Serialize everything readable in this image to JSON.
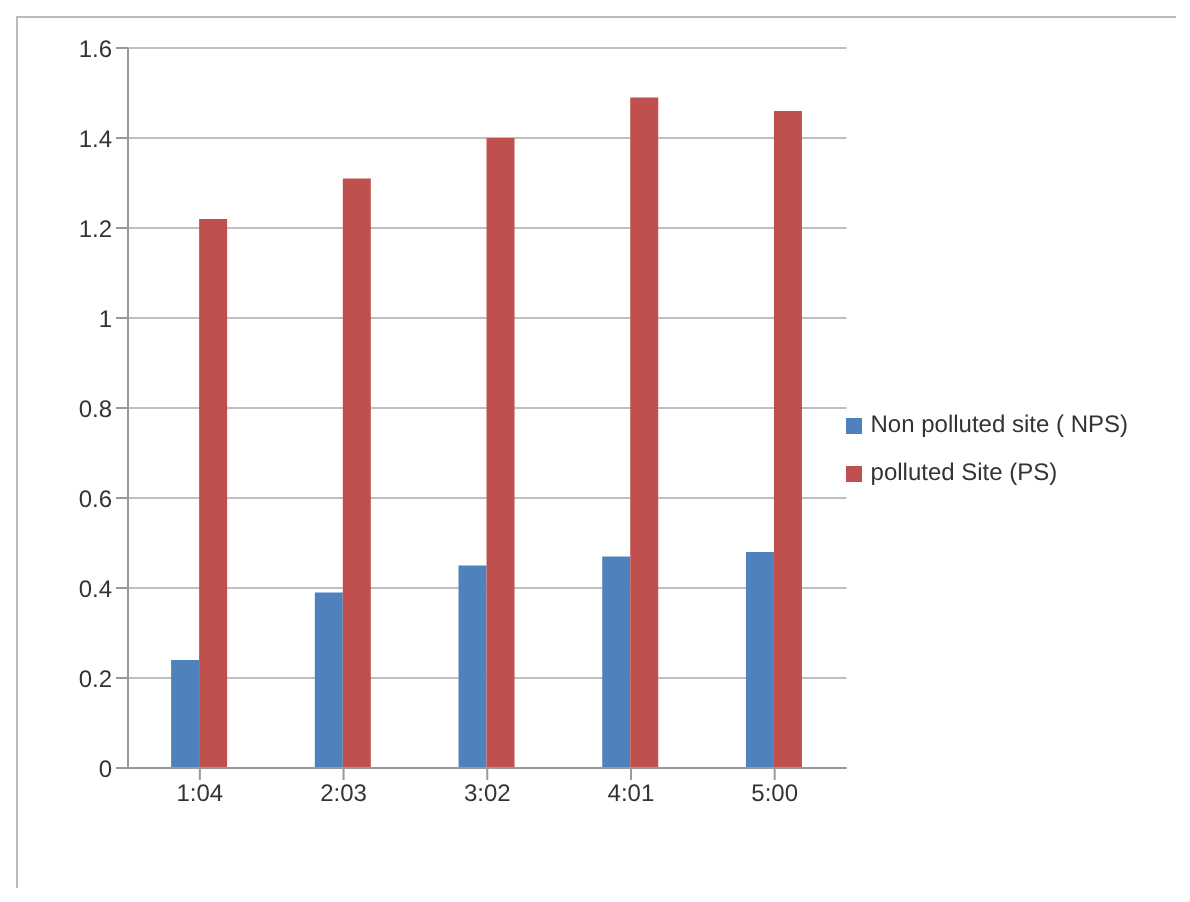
{
  "chart_data": {
    "type": "bar",
    "categories": [
      "1:04",
      "2:03",
      "3:02",
      "4:01",
      "5:00"
    ],
    "series": [
      {
        "name": "Non polluted site ( NPS)",
        "color": "#4f81bd",
        "values": [
          0.24,
          0.39,
          0.45,
          0.47,
          0.48
        ]
      },
      {
        "name": "polluted Site (PS)",
        "color": "#c0504d",
        "values": [
          1.22,
          1.31,
          1.4,
          1.49,
          1.46
        ]
      }
    ],
    "ylim": [
      0,
      1.6
    ],
    "yticks": [
      0,
      0.2,
      0.4,
      0.6,
      0.8,
      1,
      1.2,
      1.4,
      1.6
    ],
    "grid": "y",
    "legend": "right"
  }
}
